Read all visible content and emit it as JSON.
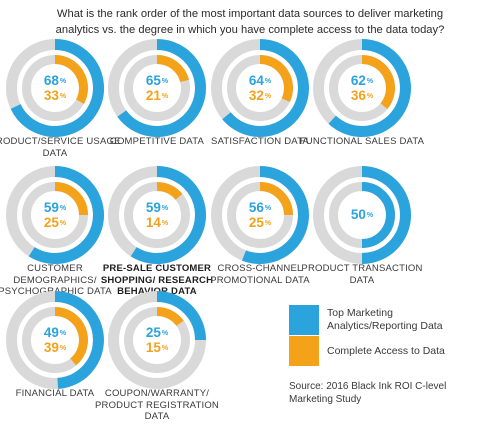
{
  "title": "What is the rank order of the most important data sources to deliver marketing analytics vs. the degree in which you have complete access to the data today?",
  "colors": {
    "blue": "#2ba3dc",
    "orange": "#f3a21a",
    "track": "#d9d9d9"
  },
  "legend": [
    {
      "label": "Top Marketing Analytics/Reporting Data",
      "color": "#2ba3dc"
    },
    {
      "label": "Complete Access to Data",
      "color": "#f3a21a"
    }
  ],
  "source": "Source: 2016 Black Ink ROI C-level Marketing Study",
  "chart_data": {
    "type": "donut",
    "series": [
      {
        "name": "Top Marketing Analytics/Reporting Data",
        "color": "#2ba3dc"
      },
      {
        "name": "Complete Access to Data",
        "color": "#f3a21a"
      }
    ],
    "items": [
      {
        "label": "PRODUCT/SERVICE USAGE DATA",
        "top": 68,
        "access": 33,
        "bold": false
      },
      {
        "label": "COMPETITIVE DATA",
        "top": 65,
        "access": 21,
        "bold": false
      },
      {
        "label": "SATISFACTION DATA",
        "top": 64,
        "access": 32,
        "bold": false
      },
      {
        "label": "FUNCTIONAL SALES DATA",
        "top": 62,
        "access": 36,
        "bold": false
      },
      {
        "label": "CUSTOMER DEMOGRAPHICS/ PSYCHOGRAPHIC DATA",
        "top": 59,
        "access": 25,
        "bold": false
      },
      {
        "label": "PRE-SALE CUSTOMER SHOPPING/ RESEARCH BEHAVIOR DATA",
        "top": 59,
        "access": 14,
        "bold": true
      },
      {
        "label": "CROSS-CHANNEL PROMOTIONAL DATA",
        "top": 56,
        "access": 25,
        "bold": false
      },
      {
        "label": "PRODUCT TRANSACTION DATA",
        "top": 50,
        "access": null,
        "bold": false
      },
      {
        "label": "FINANCIAL DATA",
        "top": 49,
        "access": 39,
        "bold": false
      },
      {
        "label": "COUPON/WARRANTY/ PRODUCT REGISTRATION DATA",
        "top": 25,
        "access": 15,
        "bold": false
      }
    ]
  }
}
